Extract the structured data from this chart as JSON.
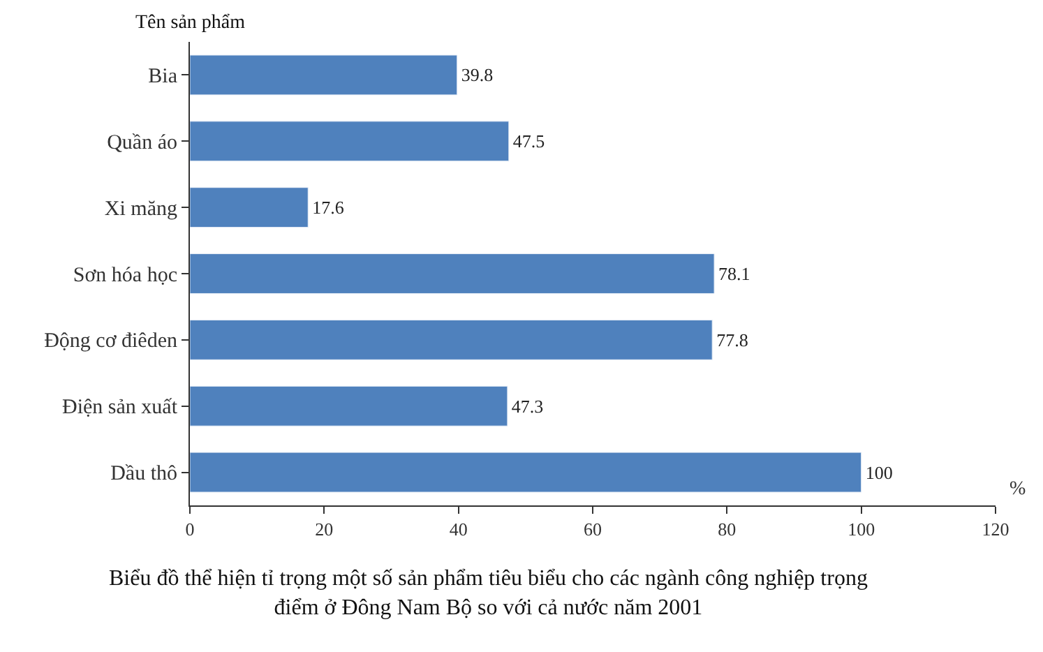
{
  "chart_data": {
    "type": "bar",
    "orientation": "horizontal",
    "title": "Biểu đồ thể hiện tỉ trọng một số sản phẩm tiêu biểu cho các ngành công nghiệp trọng\nđiểm ở Đông Nam Bộ so với cả nước năm 2001",
    "xlabel": "%",
    "ylabel": "Tên sản phẩm",
    "categories": [
      "Bia",
      "Quần áo",
      "Xi măng",
      "Sơn hóa học",
      "Động cơ điêden",
      "Điện sản xuất",
      "Dầu thô"
    ],
    "values": [
      39.8,
      47.5,
      17.6,
      78.1,
      77.8,
      47.3,
      100
    ],
    "color": "#4f81bd",
    "data_labels": true,
    "xlim": [
      0,
      120
    ],
    "xticks": [
      0,
      20,
      40,
      60,
      80,
      100,
      120
    ]
  }
}
